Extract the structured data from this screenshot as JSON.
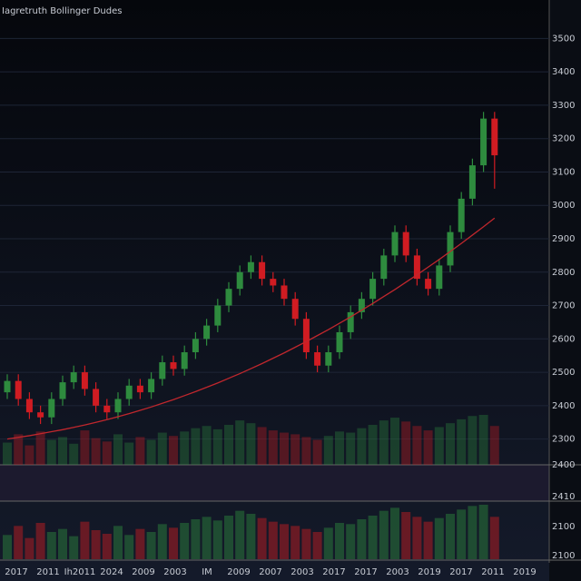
{
  "chart_data": {
    "type": "candlestick",
    "title": "Iagretruth Bollinger Dudes",
    "open": [
      2440,
      2474,
      2420,
      2380,
      2365,
      2420,
      2470,
      2500,
      2450,
      2400,
      2380,
      2420,
      2460,
      2440,
      2480,
      2530,
      2510,
      2560,
      2600,
      2640,
      2700,
      2750,
      2800,
      2830,
      2780,
      2760,
      2720,
      2660,
      2560,
      2520,
      2560,
      2620,
      2680,
      2720,
      2780,
      2850,
      2920,
      2850,
      2780,
      2750,
      2820,
      2920,
      3020,
      3120,
      3260
    ],
    "high": [
      2494,
      2494,
      2440,
      2400,
      2440,
      2490,
      2520,
      2520,
      2470,
      2420,
      2440,
      2480,
      2480,
      2500,
      2550,
      2550,
      2580,
      2620,
      2660,
      2720,
      2770,
      2820,
      2850,
      2850,
      2800,
      2780,
      2740,
      2680,
      2580,
      2580,
      2640,
      2700,
      2740,
      2800,
      2870,
      2940,
      2940,
      2870,
      2800,
      2840,
      2940,
      3040,
      3140,
      3280,
      3280
    ],
    "low": [
      2420,
      2400,
      2360,
      2345,
      2345,
      2400,
      2450,
      2430,
      2380,
      2360,
      2360,
      2400,
      2420,
      2420,
      2460,
      2490,
      2490,
      2540,
      2580,
      2620,
      2680,
      2730,
      2780,
      2760,
      2740,
      2700,
      2640,
      2540,
      2500,
      2500,
      2540,
      2600,
      2660,
      2700,
      2760,
      2830,
      2830,
      2760,
      2730,
      2730,
      2800,
      2900,
      3000,
      3100,
      3050
    ],
    "close": [
      2474,
      2420,
      2380,
      2365,
      2420,
      2470,
      2500,
      2450,
      2400,
      2380,
      2420,
      2460,
      2440,
      2480,
      2530,
      2510,
      2560,
      2600,
      2640,
      2700,
      2750,
      2800,
      2830,
      2780,
      2760,
      2720,
      2660,
      2560,
      2520,
      2560,
      2620,
      2680,
      2720,
      2780,
      2850,
      2920,
      2850,
      2780,
      2750,
      2820,
      2920,
      3020,
      3120,
      3260,
      3150
    ],
    "ma_values": [
      2300,
      2305,
      2310,
      2316,
      2322,
      2328,
      2335,
      2342,
      2350,
      2358,
      2367,
      2376,
      2386,
      2396,
      2407,
      2418,
      2430,
      2442,
      2455,
      2468,
      2482,
      2496,
      2511,
      2526,
      2542,
      2558,
      2575,
      2592,
      2610,
      2628,
      2647,
      2666,
      2686,
      2706,
      2727,
      2748,
      2770,
      2792,
      2815,
      2838,
      2862,
      2886,
      2911,
      2936,
      2962
    ],
    "ma_color": "#c0272d",
    "volume": [
      40,
      55,
      35,
      60,
      45,
      50,
      38,
      62,
      48,
      42,
      55,
      40,
      50,
      45,
      58,
      52,
      60,
      66,
      70,
      64,
      72,
      80,
      75,
      68,
      62,
      58,
      55,
      50,
      45,
      52,
      60,
      58,
      66,
      72,
      80,
      85,
      78,
      70,
      62,
      68,
      75,
      82,
      88,
      90,
      70
    ],
    "up_color": "#2e8b3e",
    "down_color": "#d01c22",
    "ylim": [
      2250,
      3550
    ],
    "yticks": [
      3500,
      3400,
      3300,
      3200,
      3100,
      3000,
      2900,
      2800,
      2700,
      2600,
      2500,
      2400,
      2300
    ],
    "panel_labels": [
      "2400",
      "2410",
      "2100",
      "2100"
    ],
    "x_labels": [
      "2017",
      "2011",
      "Ih2011",
      "2024",
      "2009",
      "2003",
      "IM",
      "2009",
      "2007",
      "2003",
      "2017",
      "2017",
      "2003",
      "2019",
      "2017",
      "2011",
      "2019"
    ],
    "grid": true
  }
}
